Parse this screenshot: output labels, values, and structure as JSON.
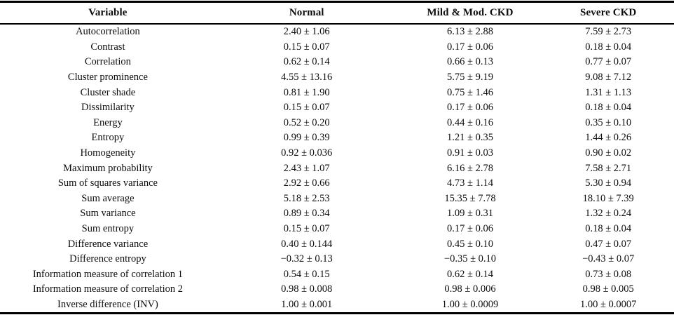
{
  "page": {
    "background_color": "#ffffff",
    "text_color": "#0d0d0d",
    "rule_color": "#000000"
  },
  "table": {
    "columns": [
      {
        "label": "Variable"
      },
      {
        "label": "Normal"
      },
      {
        "label": "Mild & Mod. CKD"
      },
      {
        "label": "Severe CKD"
      }
    ],
    "rows": [
      [
        "Autocorrelation",
        "2.40 ± 1.06",
        "6.13 ± 2.88",
        "7.59 ± 2.73"
      ],
      [
        "Contrast",
        "0.15 ± 0.07",
        "0.17 ± 0.06",
        "0.18 ± 0.04"
      ],
      [
        "Correlation",
        "0.62 ± 0.14",
        "0.66 ± 0.13",
        "0.77 ± 0.07"
      ],
      [
        "Cluster prominence",
        "4.55 ± 13.16",
        "5.75 ± 9.19",
        "9.08 ± 7.12"
      ],
      [
        "Cluster shade",
        "0.81 ± 1.90",
        "0.75 ± 1.46",
        "1.31 ± 1.13"
      ],
      [
        "Dissimilarity",
        "0.15 ± 0.07",
        "0.17 ± 0.06",
        "0.18 ± 0.04"
      ],
      [
        "Energy",
        "0.52 ± 0.20",
        "0.44 ± 0.16",
        "0.35 ± 0.10"
      ],
      [
        "Entropy",
        "0.99 ± 0.39",
        "1.21 ± 0.35",
        "1.44 ± 0.26"
      ],
      [
        "Homogeneity",
        "0.92 ± 0.036",
        "0.91 ± 0.03",
        "0.90 ± 0.02"
      ],
      [
        "Maximum probability",
        "2.43 ± 1.07",
        "6.16 ± 2.78",
        "7.58 ± 2.71"
      ],
      [
        "Sum of squares variance",
        "2.92 ± 0.66",
        "4.73 ± 1.14",
        "5.30 ± 0.94"
      ],
      [
        "Sum average",
        "5.18 ± 2.53",
        "15.35 ± 7.78",
        "18.10 ± 7.39"
      ],
      [
        "Sum variance",
        "0.89 ± 0.34",
        "1.09 ± 0.31",
        "1.32 ± 0.24"
      ],
      [
        "Sum entropy",
        "0.15 ± 0.07",
        "0.17 ± 0.06",
        "0.18 ± 0.04"
      ],
      [
        "Difference variance",
        "0.40 ± 0.144",
        "0.45 ± 0.10",
        "0.47 ± 0.07"
      ],
      [
        "Difference entropy",
        "−0.32 ± 0.13",
        "−0.35 ± 0.10",
        "−0.43 ± 0.07"
      ],
      [
        "Information measure of correlation 1",
        "0.54 ± 0.15",
        "0.62 ± 0.14",
        "0.73 ± 0.08"
      ],
      [
        "Information measure of correlation 2",
        "0.98 ± 0.008",
        "0.98 ± 0.006",
        "0.98 ± 0.005"
      ],
      [
        "Inverse difference (INV)",
        "1.00 ± 0.001",
        "1.00 ± 0.0009",
        "1.00 ± 0.0007"
      ]
    ]
  }
}
